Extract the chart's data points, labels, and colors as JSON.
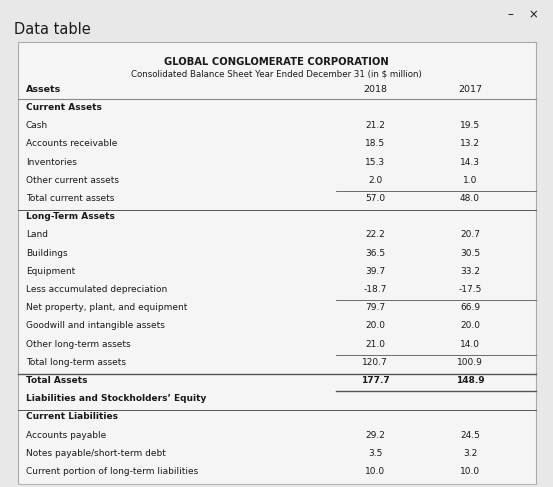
{
  "title1": "GLOBAL CONGLOMERATE CORPORATION",
  "title2": "Consolidated Balance Sheet Year Ended December 31 (in $ million)",
  "col_headers": [
    "Assets",
    "2018",
    "2017"
  ],
  "rows": [
    {
      "label": "Current Assets",
      "v2018": "",
      "v2017": "",
      "style": "section_bold",
      "top_line": false
    },
    {
      "label": "Cash",
      "v2018": "21.2",
      "v2017": "19.5",
      "style": "normal"
    },
    {
      "label": "Accounts receivable",
      "v2018": "18.5",
      "v2017": "13.2",
      "style": "normal"
    },
    {
      "label": "Inventories",
      "v2018": "15.3",
      "v2017": "14.3",
      "style": "normal"
    },
    {
      "label": "Other current assets",
      "v2018": "2.0",
      "v2017": "1.0",
      "style": "normal",
      "bottom_line": true
    },
    {
      "label": "Total current assets",
      "v2018": "57.0",
      "v2017": "48.0",
      "style": "normal"
    },
    {
      "label": "Long-Term Assets",
      "v2018": "",
      "v2017": "",
      "style": "section_bold",
      "top_line": true
    },
    {
      "label": "Land",
      "v2018": "22.2",
      "v2017": "20.7",
      "style": "normal"
    },
    {
      "label": "Buildings",
      "v2018": "36.5",
      "v2017": "30.5",
      "style": "normal"
    },
    {
      "label": "Equipment",
      "v2018": "39.7",
      "v2017": "33.2",
      "style": "normal"
    },
    {
      "label": "Less accumulated depreciation",
      "v2018": "-18.7",
      "v2017": "-17.5",
      "style": "normal",
      "bottom_line": true
    },
    {
      "label": "Net property, plant, and equipment",
      "v2018": "79.7",
      "v2017": "66.9",
      "style": "normal"
    },
    {
      "label": "Goodwill and intangible assets",
      "v2018": "20.0",
      "v2017": "20.0",
      "style": "normal"
    },
    {
      "label": "Other long-term assets",
      "v2018": "21.0",
      "v2017": "14.0",
      "style": "normal",
      "bottom_line": true
    },
    {
      "label": "Total long-term assets",
      "v2018": "120.7",
      "v2017": "100.9",
      "style": "normal"
    },
    {
      "label": "Total Assets",
      "v2018": "177.7",
      "v2017": "148.9",
      "style": "total_bold",
      "top_line": true,
      "bottom_line": true
    },
    {
      "label": "Liabilities and Stockholders’ Equity",
      "v2018": "",
      "v2017": "",
      "style": "section_bold"
    },
    {
      "label": "Current Liabilities",
      "v2018": "",
      "v2017": "",
      "style": "section_bold",
      "top_line": true
    },
    {
      "label": "Accounts payable",
      "v2018": "29.2",
      "v2017": "24.5",
      "style": "normal"
    },
    {
      "label": "Notes payable/short-term debt",
      "v2018": "3.5",
      "v2017": "3.2",
      "style": "normal"
    },
    {
      "label": "Current portion of long-term liabilities",
      "v2018": "10.0",
      "v2017": "10.0",
      "style": "normal",
      "clipped": true
    }
  ],
  "bg_color": "#e8e8e8",
  "table_bg": "#f5f5f5",
  "border_color": "#aaaaaa",
  "text_color": "#1a1a1a",
  "window_title": "Data table"
}
